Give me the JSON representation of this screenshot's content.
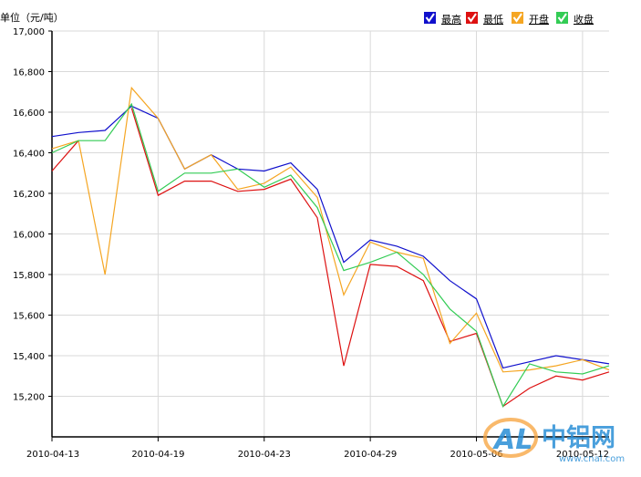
{
  "chart_data": {
    "type": "line",
    "unit_label": "单位（元/吨）",
    "ylim": [
      15000,
      17000
    ],
    "y_ticks": [
      15200,
      15400,
      15600,
      15800,
      16000,
      16200,
      16400,
      16600,
      16800,
      17000
    ],
    "y_tick_labels": [
      "15,200",
      "15,400",
      "15,600",
      "15,800",
      "16,000",
      "16,200",
      "16,400",
      "16,600",
      "16,800",
      "17,000"
    ],
    "x": [
      "2010-04-13",
      "2010-04-14",
      "2010-04-15",
      "2010-04-16",
      "2010-04-19",
      "2010-04-20",
      "2010-04-21",
      "2010-04-22",
      "2010-04-23",
      "2010-04-26",
      "2010-04-27",
      "2010-04-28",
      "2010-04-29",
      "2010-04-30",
      "2010-05-04",
      "2010-05-05",
      "2010-05-06",
      "2010-05-07",
      "2010-05-10",
      "2010-05-11",
      "2010-05-12",
      "2010-05-13"
    ],
    "x_tick_labels": [
      "2010-04-13",
      "2010-04-19",
      "2010-04-23",
      "2010-04-29",
      "2010-05-06",
      "2010-05-12"
    ],
    "x_tick_indices": [
      0,
      4,
      8,
      12,
      16,
      20
    ],
    "grid": true,
    "legend_position": "top-right",
    "series": [
      {
        "name": "最高",
        "color": "#1010cc",
        "values": [
          16480,
          16500,
          16510,
          16630,
          16570,
          16320,
          16390,
          16320,
          16310,
          16350,
          16220,
          15860,
          15970,
          15940,
          15890,
          15770,
          15680,
          15340,
          15370,
          15400,
          15380,
          15360
        ]
      },
      {
        "name": "最低",
        "color": "#dd1111",
        "values": [
          16310,
          16460,
          null,
          16620,
          16190,
          16260,
          16260,
          16210,
          16220,
          16270,
          16080,
          15350,
          15850,
          15840,
          15770,
          15470,
          15510,
          15150,
          15240,
          15300,
          15280,
          15320
        ]
      },
      {
        "name": "开盘",
        "color": "#f5a623",
        "values": [
          16420,
          16460,
          15800,
          16720,
          16570,
          16320,
          16390,
          16220,
          16250,
          16330,
          16180,
          15700,
          15960,
          15910,
          15880,
          15460,
          15610,
          15320,
          15330,
          15350,
          15380,
          15330
        ]
      },
      {
        "name": "收盘",
        "color": "#33cc55",
        "values": [
          16400,
          16460,
          16460,
          16640,
          16210,
          16300,
          16300,
          16320,
          16230,
          16290,
          16130,
          15820,
          15860,
          15910,
          15800,
          15630,
          15520,
          15150,
          15360,
          15320,
          15310,
          15350
        ]
      }
    ]
  },
  "watermark": {
    "brand_cn": "中铝网",
    "site": "www.cnal.com",
    "logo_letters": "AL"
  }
}
